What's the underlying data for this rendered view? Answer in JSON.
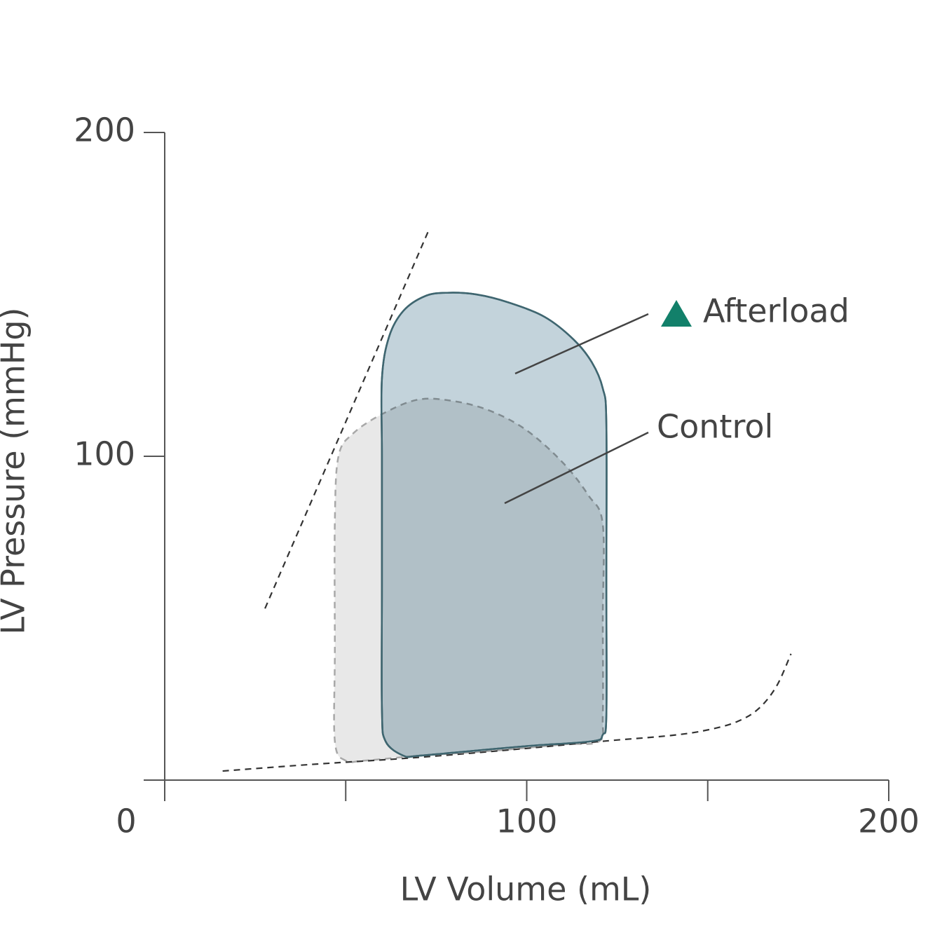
{
  "chart_data": {
    "type": "pv-loop",
    "x_label": "LV Volume (mL)",
    "y_label": "LV Pressure (mmHg)",
    "xlim": [
      0,
      200
    ],
    "ylim": [
      0,
      200
    ],
    "xticks": [
      0,
      100,
      200
    ],
    "xminor_ticks": [
      50,
      150
    ],
    "yticks": [
      100,
      200
    ],
    "series": [
      {
        "name": "Afterload",
        "color": "#c3d3db",
        "line_color": "#3f6670",
        "closed": true,
        "x": [
          66,
          61,
          60,
          60,
          60,
          60,
          62,
          66,
          72,
          78,
          86,
          95,
          105,
          113,
          118,
          121,
          122,
          122,
          122,
          121,
          118,
          100,
          80,
          70
        ],
        "values": [
          7.5,
          12,
          22,
          60,
          100,
          124,
          137,
          145,
          149.5,
          150.5,
          150,
          147.5,
          143,
          136,
          129,
          121,
          110,
          60,
          20,
          14,
          12,
          10.5,
          8.5,
          7.5
        ]
      },
      {
        "name": "Control",
        "color": "#e8e8e8",
        "line_color": "#a8a8a8",
        "closed": true,
        "dashed": true,
        "x": [
          50,
          47,
          47,
          47,
          48,
          52,
          60,
          70,
          80,
          90,
          100,
          110,
          117,
          121,
          121,
          121,
          120,
          110,
          90,
          70,
          55
        ],
        "values": [
          6,
          12,
          40,
          80,
          100,
          107,
          113,
          117.5,
          117,
          114,
          108,
          98,
          88,
          79,
          50,
          20,
          12,
          11,
          9,
          7.5,
          6
        ]
      },
      {
        "line_color": "#333333",
        "dashed": true,
        "x": [
          27.7,
          73
        ],
        "values": [
          53,
          170
        ]
      },
      {
        "line_color": "#333333",
        "dashed": true,
        "x": [
          16,
          40,
          70,
          100,
          121,
          140,
          150,
          158,
          164,
          169,
          173
        ],
        "values": [
          2.8,
          4.8,
          7,
          9.8,
          12,
          13.8,
          15.5,
          18,
          22,
          29,
          39
        ]
      }
    ],
    "marker_color": "#12806a"
  }
}
